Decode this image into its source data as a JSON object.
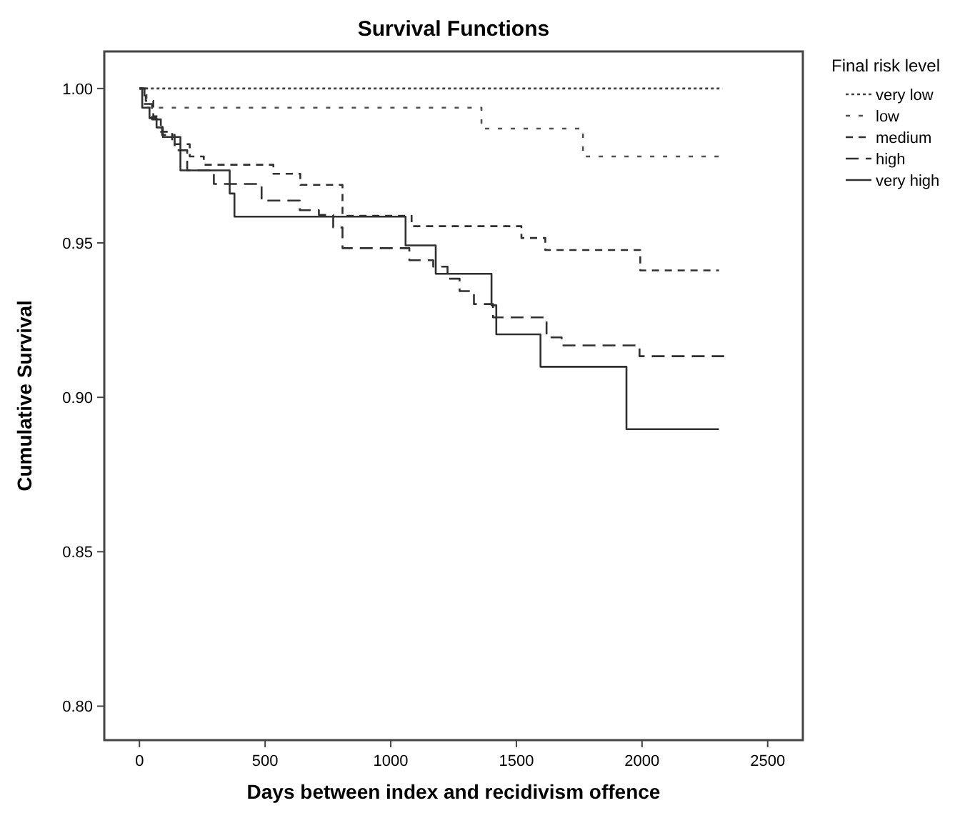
{
  "chart_data": {
    "type": "step",
    "title": "Survival Functions",
    "xlabel": "Days between index and recidivism offence",
    "ylabel": "Cumulative Survival",
    "legend_title": "Final risk level",
    "legend": "right",
    "grid": false,
    "xlim": [
      -140,
      2640
    ],
    "xticks": [
      0,
      500,
      1000,
      1500,
      2000,
      2500
    ],
    "ylim": [
      0.789,
      1.012
    ],
    "yticks": [
      {
        "value": 0.8,
        "label": "0.80"
      },
      {
        "value": 0.85,
        "label": "0.85"
      },
      {
        "value": 0.9,
        "label": "0.90"
      },
      {
        "value": 0.95,
        "label": "0.95"
      },
      {
        "value": 1.0,
        "label": "1.00"
      }
    ],
    "series": [
      {
        "name": "very low",
        "color": "#404040",
        "line_style": "dotted",
        "x": [
          0,
          2320
        ],
        "values": [
          1.0,
          1.0
        ]
      },
      {
        "name": "low",
        "color": "#505050",
        "line_style": "dashed",
        "x": [
          0,
          28,
          1361,
          1765,
          2320
        ],
        "values": [
          1.0,
          0.9938,
          0.987,
          0.978,
          0.978
        ]
      },
      {
        "name": "medium",
        "color": "#303030",
        "line_style": "dashed",
        "x": [
          0,
          25,
          55,
          85,
          130,
          200,
          256,
          533,
          640,
          808,
          1083,
          1520,
          1615,
          1993,
          2306
        ],
        "values": [
          1.0,
          0.996,
          0.991,
          0.986,
          0.982,
          0.978,
          0.9753,
          0.9724,
          0.9688,
          0.9588,
          0.9554,
          0.9516,
          0.9477,
          0.9411,
          0.9411
        ]
      },
      {
        "name": "high",
        "color": "#303030",
        "line_style": "dashed",
        "x": [
          0,
          20,
          50,
          90,
          140,
          190,
          296,
          486,
          638,
          714,
          771,
          808,
          1074,
          1169,
          1226,
          1274,
          1331,
          1407,
          1620,
          1680,
          1990,
          2327
        ],
        "values": [
          1.0,
          0.995,
          0.99,
          0.985,
          0.98,
          0.9735,
          0.9691,
          0.9637,
          0.9606,
          0.9591,
          0.955,
          0.9483,
          0.9444,
          0.9423,
          0.9384,
          0.9344,
          0.9302,
          0.9259,
          0.9194,
          0.9168,
          0.9133,
          0.9133
        ]
      },
      {
        "name": "very high",
        "color": "#303030",
        "line_style": "solid",
        "x": [
          0,
          11,
          40,
          68,
          93,
          163,
          359,
          378,
          1059,
          1179,
          1401,
          1420,
          1596,
          1938,
          2306
        ],
        "values": [
          1.0,
          0.9938,
          0.9904,
          0.9874,
          0.9843,
          0.9735,
          0.966,
          0.9585,
          0.9492,
          0.94,
          0.9298,
          0.9204,
          0.9099,
          0.8897,
          0.8897
        ]
      }
    ]
  }
}
